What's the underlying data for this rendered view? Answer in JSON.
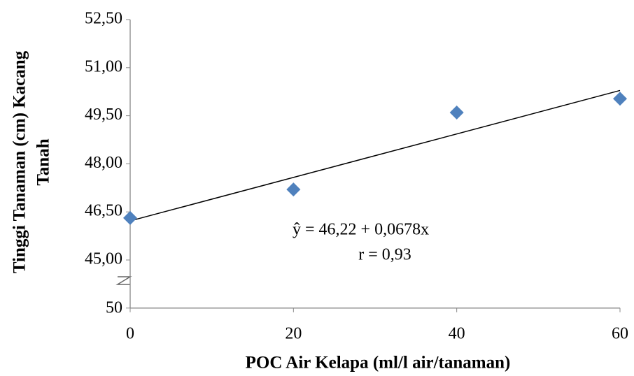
{
  "chart_data": {
    "type": "scatter",
    "x_label": "POC Air Kelapa (ml/l air/tanaman)",
    "y_label": [
      "Tinggi Tanaman (cm) Kacang",
      "Tanah"
    ],
    "x": [
      0,
      20,
      40,
      60
    ],
    "values": [
      46.31,
      47.2,
      49.6,
      50.03
    ],
    "color": "#4f81bd",
    "xlim": [
      0,
      60
    ],
    "xticks": [
      0,
      20,
      40,
      60
    ],
    "ylim": [
      43.5,
      52.5
    ],
    "yticks": [
      {
        "value": 45,
        "label": "45,00"
      },
      {
        "value": 46.5,
        "label": "46,50"
      },
      {
        "value": 48,
        "label": "48,00"
      },
      {
        "value": 49.5,
        "label": "49,50"
      },
      {
        "value": 51,
        "label": "51,00"
      },
      {
        "value": 52.5,
        "label": "52,50"
      }
    ],
    "axis_break_label": "50",
    "trendline": {
      "intercept": 46.22,
      "slope": 0.0678
    },
    "annotations": [
      "ŷ =  46,22 + 0,0678x",
      "r = 0,93"
    ],
    "grid": false
  }
}
